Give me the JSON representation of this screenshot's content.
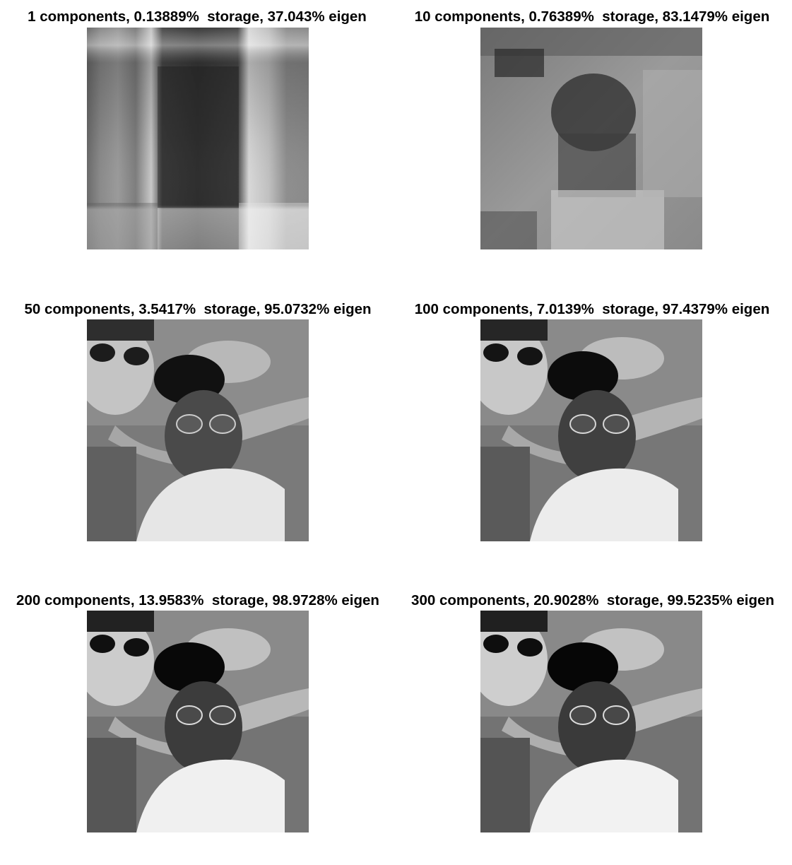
{
  "figure": {
    "panels": [
      {
        "title": "1 components, 0.13889%  storage, 37.043% eigen",
        "components": 1,
        "storage_percent": 0.13889,
        "eigen_percent": 37.043,
        "image_icon": "rank-1-reconstruction-image"
      },
      {
        "title": "10 components, 0.76389%  storage, 83.1479% eigen",
        "components": 10,
        "storage_percent": 0.76389,
        "eigen_percent": 83.1479,
        "image_icon": "rank-10-reconstruction-image"
      },
      {
        "title": "50 components, 3.5417%  storage, 95.0732% eigen",
        "components": 50,
        "storage_percent": 3.5417,
        "eigen_percent": 95.0732,
        "image_icon": "rank-50-reconstruction-image"
      },
      {
        "title": "100 components, 7.0139%  storage, 97.4379% eigen",
        "components": 100,
        "storage_percent": 7.0139,
        "eigen_percent": 97.4379,
        "image_icon": "rank-100-reconstruction-image"
      },
      {
        "title": "200 components, 13.9583%  storage, 98.9728% eigen",
        "components": 200,
        "storage_percent": 13.9583,
        "eigen_percent": 98.9728,
        "image_icon": "rank-200-reconstruction-image"
      },
      {
        "title": "300 components, 20.9028%  storage, 99.5235% eigen",
        "components": 300,
        "storage_percent": 20.9028,
        "eigen_percent": 99.5235,
        "image_icon": "rank-300-reconstruction-image"
      }
    ]
  }
}
